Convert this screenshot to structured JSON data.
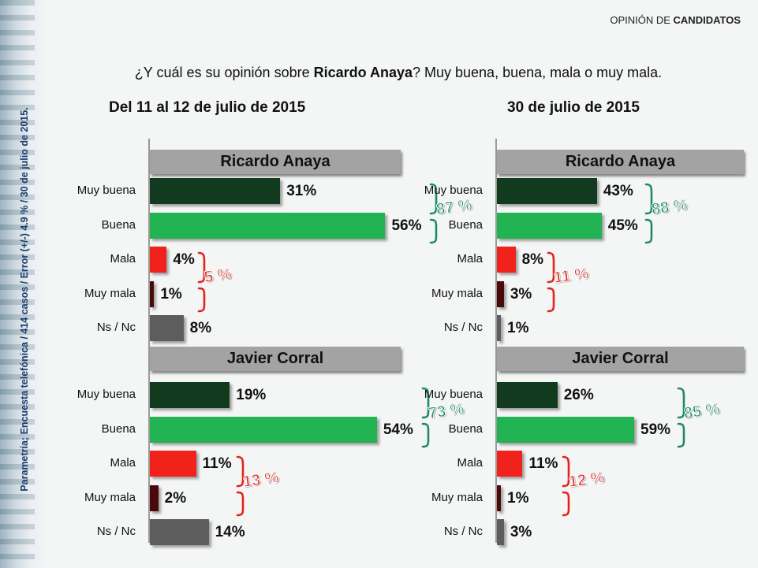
{
  "section_label": {
    "prefix": "OPINIÓN DE ",
    "bold": "CANDIDATOS"
  },
  "question": {
    "prefix": "¿Y cuál es su opinión sobre ",
    "bold": "Ricardo Anaya",
    "suffix": "? Muy buena, buena, mala o muy mala."
  },
  "vertical_note": "Parametría; Encuesta telefónica / 414 casos / Error (+/-) 4.9 % / 30 de julio de 2015.",
  "colors": {
    "Muy buena": "#113a1f",
    "Buena": "#22b352",
    "Mala": "#f0221b",
    "Muy mala": "#4a0a0a",
    "Ns / Nc": "#5d5d5d",
    "positive_total": "#1f8a6a",
    "negative_total": "#e0251c"
  },
  "chart_data": [
    {
      "type": "bar",
      "title": "Del 11 al 12 de  julio de 2015",
      "categories": [
        "Muy buena",
        "Buena",
        "Mala",
        "Muy mala",
        "Ns / Nc"
      ],
      "xlim": [
        0,
        100
      ],
      "series": [
        {
          "name": "Ricardo Anaya",
          "values": [
            31,
            56,
            4,
            1,
            8
          ],
          "value_labels": [
            "31%",
            "56%",
            "4%",
            "1%",
            "8%"
          ],
          "positive_total": "87 %",
          "negative_total": "5 %"
        },
        {
          "name": "Javier Corral",
          "values": [
            19,
            54,
            11,
            2,
            14
          ],
          "value_labels": [
            "19%",
            "54%",
            "11%",
            "2%",
            "14%"
          ],
          "positive_total": "73 %",
          "negative_total": "13 %"
        }
      ]
    },
    {
      "type": "bar",
      "title": "30 de julio de 2015",
      "categories": [
        "Muy buena",
        "Buena",
        "Mala",
        "Muy mala",
        "Ns / Nc"
      ],
      "xlim": [
        0,
        100
      ],
      "series": [
        {
          "name": "Ricardo Anaya",
          "values": [
            43,
            45,
            8,
            3,
            1
          ],
          "value_labels": [
            "43%",
            "45%",
            "8%",
            "3%",
            "1%"
          ],
          "positive_total": "88 %",
          "negative_total": "11 %"
        },
        {
          "name": "Javier Corral",
          "values": [
            26,
            59,
            11,
            1,
            3
          ],
          "value_labels": [
            "26%",
            "59%",
            "11%",
            "1%",
            "3%"
          ],
          "positive_total": "85 %",
          "negative_total": "12 %"
        }
      ]
    }
  ]
}
